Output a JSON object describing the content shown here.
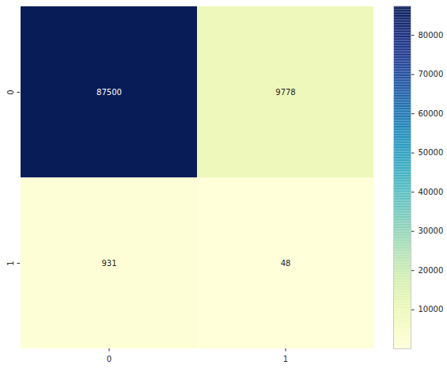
{
  "chart_data": {
    "type": "heatmap",
    "x_categories": [
      "0",
      "1"
    ],
    "y_categories": [
      "0",
      "1"
    ],
    "cells": [
      [
        87500,
        9778
      ],
      [
        931,
        48
      ]
    ],
    "color": "YlGnBu",
    "data_labels": true,
    "colorbar_range": [
      48,
      87500
    ],
    "colorbar_ticks": [
      10000,
      20000,
      30000,
      40000,
      50000,
      60000,
      70000,
      80000
    ]
  }
}
